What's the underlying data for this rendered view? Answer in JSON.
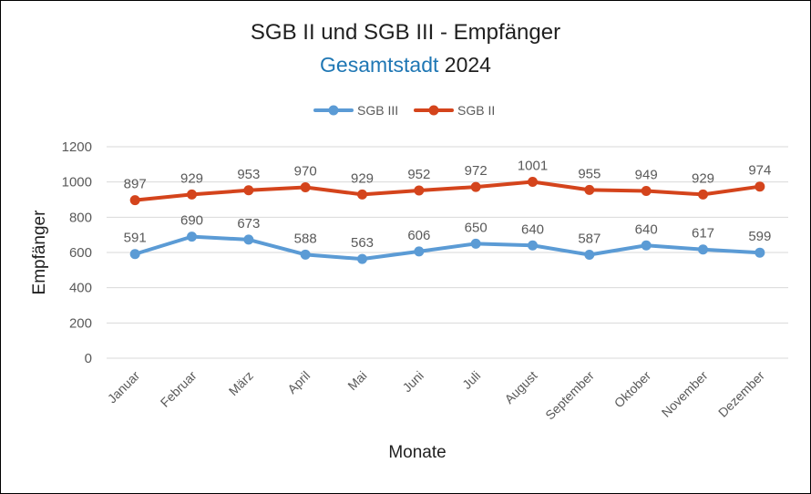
{
  "title": {
    "main": "SGB II und SGB III - Empfänger",
    "sub_accent": "Gesamtstadt",
    "sub_rest": "2024"
  },
  "colors": {
    "sgb3": "#5b9bd5",
    "sgb2": "#d4441c",
    "grid": "#d9d9d9",
    "text": "#595959",
    "accent": "#1f77b4"
  },
  "chart_data": {
    "type": "line",
    "title": "SGB II und SGB III - Empfänger",
    "subtitle": "Gesamtstadt 2024",
    "xlabel": "Monate",
    "ylabel": "Empfänger",
    "ylim": [
      0,
      1200
    ],
    "yticks": [
      0,
      200,
      400,
      600,
      800,
      1000,
      1200
    ],
    "grid": true,
    "legend_position": "top-center",
    "categories": [
      "Januar",
      "Februar",
      "März",
      "April",
      "Mai",
      "Juni",
      "Juli",
      "August",
      "September",
      "Oktober",
      "November",
      "Dezember"
    ],
    "series": [
      {
        "name": "SGB III",
        "color": "#5b9bd5",
        "values": [
          591,
          690,
          673,
          588,
          563,
          606,
          650,
          640,
          587,
          640,
          617,
          599
        ]
      },
      {
        "name": "SGB II",
        "color": "#d4441c",
        "values": [
          897,
          929,
          953,
          970,
          929,
          952,
          972,
          1001,
          955,
          949,
          929,
          974
        ]
      }
    ]
  }
}
